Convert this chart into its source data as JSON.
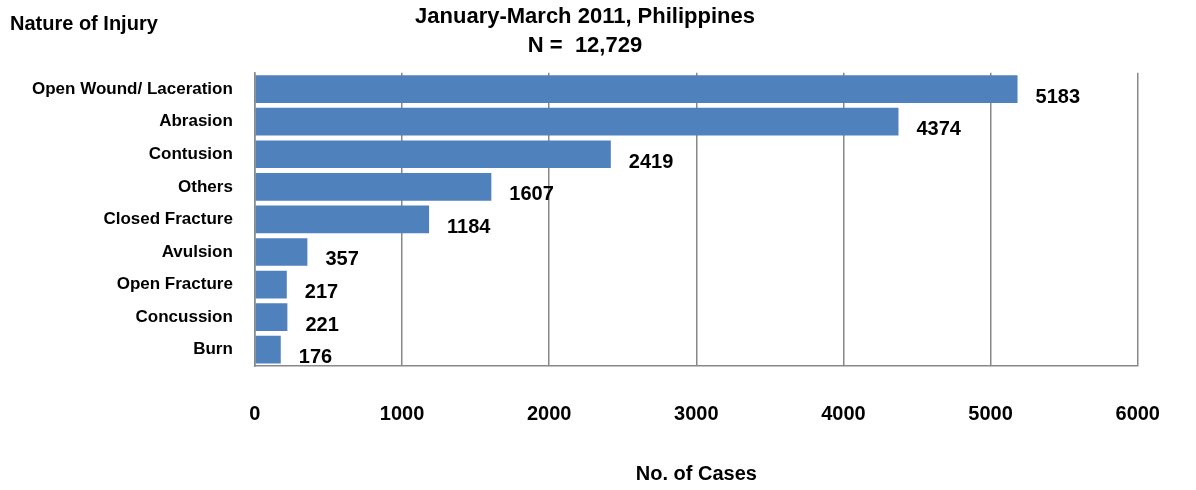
{
  "chart_data": {
    "type": "bar",
    "orientation": "horizontal",
    "title": "January-March 2011, Philippines",
    "subtitle": "N =  12,729",
    "ylabel": "Nature of Injury",
    "xlabel": "No. of Cases",
    "categories": [
      "Open Wound/ Laceration",
      "Abrasion",
      "Contusion",
      "Others",
      "Closed Fracture",
      "Avulsion",
      "Open Fracture",
      "Concussion",
      "Burn"
    ],
    "values": [
      5183,
      4374,
      2419,
      1607,
      1184,
      357,
      217,
      221,
      176
    ],
    "color": "#4f81bd",
    "xlim": [
      0,
      6000
    ],
    "xticks": [
      0,
      1000,
      2000,
      3000,
      4000,
      5000,
      6000
    ],
    "grid": "x",
    "legend": false,
    "data_labels": true
  }
}
